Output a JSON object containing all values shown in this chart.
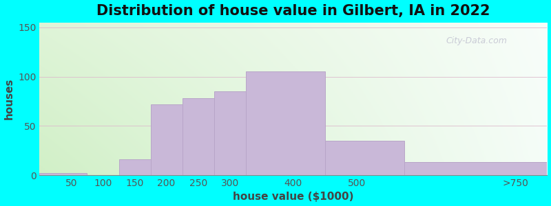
{
  "title": "Distribution of house value in Gilbert, IA in 2022",
  "xlabel": "house value ($1000)",
  "ylabel": "houses",
  "bin_edges": [
    0,
    75,
    125,
    175,
    225,
    275,
    325,
    450,
    575,
    800
  ],
  "tick_positions": [
    50,
    100,
    150,
    200,
    250,
    300,
    400,
    500,
    750
  ],
  "tick_labels": [
    "50",
    "100",
    "150",
    "200",
    "250",
    "300",
    "400",
    "500",
    ">750"
  ],
  "bar_heights": [
    2,
    0,
    16,
    72,
    78,
    85,
    105,
    35,
    13
  ],
  "bar_color": "#c9b8d8",
  "bar_edge_color": "#b8a5c8",
  "yticks": [
    0,
    50,
    100,
    150
  ],
  "ylim": [
    0,
    155
  ],
  "outer_bg": "#00ffff",
  "title_fontsize": 15,
  "axis_fontsize": 11,
  "tick_fontsize": 10,
  "watermark": "City-Data.com",
  "grid_color": "#ddbbcc",
  "bg_left": "#d8eecc",
  "bg_right": "#f0faf8"
}
